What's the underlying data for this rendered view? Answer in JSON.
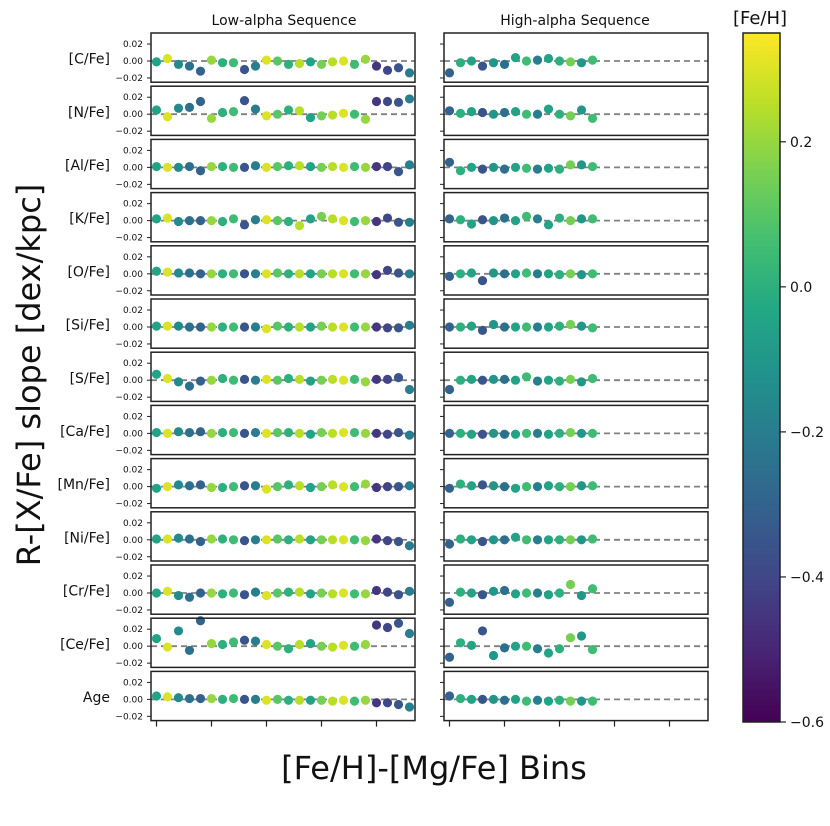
{
  "chart_data": {
    "type": "scatter",
    "supxlabel": "[Fe/H]-[Mg/Fe] Bins",
    "supylabel": "R-[X/Fe] slope [dex/kpc]",
    "column_titles": [
      "Low-alpha Sequence",
      "High-alpha Sequence"
    ],
    "row_labels": [
      "[C/Fe]",
      "[N/Fe]",
      "[Al/Fe]",
      "[K/Fe]",
      "[O/Fe]",
      "[Si/Fe]",
      "[S/Fe]",
      "[Ca/Fe]",
      "[Mn/Fe]",
      "[Ni/Fe]",
      "[Cr/Fe]",
      "[Ce/Fe]",
      "Age"
    ],
    "ylim": [
      -0.025,
      0.033
    ],
    "yticks": [
      -0.02,
      0.0,
      0.02
    ],
    "ytick_labels": [
      "−0.02",
      "0.00",
      "0.02"
    ],
    "x_range": [
      -0.5,
      23.5
    ],
    "xticks": [
      0,
      5,
      10,
      15,
      20
    ],
    "reference_line": 0.0,
    "colorbar": {
      "label": "[Fe/H]",
      "vmin": -0.6,
      "vmax": 0.35,
      "ticks": [
        0.2,
        0.0,
        -0.2,
        -0.4,
        -0.6
      ],
      "tick_labels": [
        "0.2",
        "0.0",
        "−0.2",
        "−0.4",
        "−0.6"
      ],
      "colormap": "viridis"
    },
    "low_alpha_feh": [
      -0.05,
      0.3,
      -0.15,
      -0.25,
      -0.3,
      0.2,
      0.0,
      0.05,
      -0.35,
      -0.2,
      0.3,
      0.1,
      0.0,
      0.25,
      -0.05,
      0.15,
      0.25,
      0.3,
      0.05,
      0.2,
      -0.45,
      -0.4,
      -0.35,
      -0.2
    ],
    "high_alpha_feh": [
      -0.3,
      0.0,
      -0.05,
      -0.35,
      -0.1,
      -0.25,
      -0.05,
      0.05,
      -0.2,
      -0.05,
      0.0,
      0.15,
      -0.1,
      0.05
    ],
    "series": [
      {
        "name": "[C/Fe]",
        "low_alpha": [
          -0.001,
          0.003,
          -0.004,
          -0.006,
          -0.012,
          0.001,
          -0.002,
          -0.002,
          -0.01,
          -0.006,
          0.001,
          0.0,
          -0.004,
          -0.003,
          -0.001,
          -0.004,
          -0.001,
          0.0,
          -0.004,
          0.002,
          -0.006,
          -0.011,
          -0.008,
          -0.014
        ],
        "high_alpha": [
          -0.014,
          -0.002,
          0.0,
          -0.006,
          -0.002,
          -0.004,
          0.004,
          0.0,
          0.001,
          0.003,
          0.0,
          -0.001,
          -0.002,
          0.001
        ]
      },
      {
        "name": "[N/Fe]",
        "low_alpha": [
          0.005,
          -0.003,
          0.007,
          0.008,
          0.015,
          -0.005,
          0.002,
          0.003,
          0.016,
          0.006,
          -0.002,
          0.0,
          0.005,
          0.004,
          -0.004,
          -0.002,
          -0.001,
          0.001,
          0.0,
          -0.006,
          0.015,
          0.015,
          0.014,
          0.018
        ],
        "high_alpha": [
          0.004,
          0.001,
          0.003,
          0.002,
          0.0,
          0.002,
          0.003,
          0.0,
          0.0,
          0.006,
          0.0,
          -0.002,
          0.005,
          -0.005
        ]
      },
      {
        "name": "[Al/Fe]",
        "low_alpha": [
          0.001,
          0.0,
          0.0,
          0.001,
          -0.004,
          0.001,
          0.001,
          0.0,
          0.0,
          0.002,
          0.0,
          0.001,
          0.002,
          0.002,
          0.001,
          0.0,
          0.001,
          0.0,
          0.001,
          0.0,
          0.001,
          0.001,
          -0.005,
          0.003
        ],
        "high_alpha": [
          0.006,
          -0.004,
          0.0,
          -0.002,
          0.0,
          -0.002,
          0.0,
          -0.001,
          -0.002,
          -0.001,
          -0.002,
          0.003,
          0.003,
          0.001
        ]
      },
      {
        "name": "[K/Fe]",
        "low_alpha": [
          0.002,
          0.003,
          -0.001,
          0.0,
          0.0,
          0.0,
          -0.001,
          0.002,
          -0.005,
          0.001,
          0.001,
          0.0,
          -0.001,
          -0.006,
          0.002,
          0.005,
          0.002,
          0.0,
          -0.001,
          0.0,
          -0.001,
          0.003,
          -0.002,
          -0.002
        ],
        "high_alpha": [
          0.002,
          0.001,
          -0.004,
          0.001,
          0.0,
          0.003,
          0.0,
          0.005,
          0.002,
          -0.005,
          0.003,
          0.0,
          0.002,
          0.002
        ]
      },
      {
        "name": "[O/Fe]",
        "low_alpha": [
          0.003,
          0.002,
          0.001,
          0.001,
          0.0,
          0.0,
          0.0,
          0.0,
          0.0,
          0.0,
          0.0,
          0.001,
          0.0,
          0.0,
          0.0,
          0.0,
          0.0,
          0.0,
          0.0,
          0.0,
          -0.001,
          0.004,
          0.001,
          0.0
        ],
        "high_alpha": [
          -0.003,
          0.0,
          0.001,
          -0.008,
          0.001,
          0.0,
          0.0,
          0.001,
          0.0,
          0.0,
          -0.001,
          0.0,
          -0.001,
          0.0
        ]
      },
      {
        "name": "[Si/Fe]",
        "low_alpha": [
          0.001,
          0.001,
          0.001,
          0.0,
          0.0,
          0.0,
          0.0,
          0.0,
          0.0,
          0.0,
          -0.002,
          0.001,
          0.0,
          0.0,
          0.0,
          0.001,
          0.0,
          0.0,
          0.0,
          0.0,
          0.0,
          -0.001,
          -0.001,
          0.002
        ],
        "high_alpha": [
          0.0,
          0.0,
          0.001,
          -0.004,
          0.003,
          0.0,
          0.0,
          0.0,
          0.0,
          0.0,
          0.001,
          0.003,
          0.001,
          -0.001
        ]
      },
      {
        "name": "[S/Fe]",
        "low_alpha": [
          0.007,
          0.002,
          -0.002,
          -0.007,
          -0.001,
          0.0,
          0.002,
          0.0,
          0.001,
          0.0,
          0.001,
          0.0,
          0.002,
          0.001,
          -0.001,
          0.0,
          0.001,
          0.0,
          0.001,
          -0.002,
          0.001,
          0.001,
          0.003,
          -0.011
        ],
        "high_alpha": [
          -0.011,
          0.0,
          0.001,
          0.0,
          0.001,
          0.001,
          0.0,
          0.004,
          -0.001,
          0.0,
          -0.001,
          0.001,
          -0.002,
          0.002
        ]
      },
      {
        "name": "[Ca/Fe]",
        "low_alpha": [
          0.001,
          0.0,
          0.002,
          0.001,
          0.002,
          0.0,
          0.001,
          0.001,
          0.0,
          0.001,
          0.0,
          0.001,
          0.001,
          0.0,
          -0.001,
          0.001,
          0.0,
          0.001,
          0.001,
          0.0,
          0.0,
          -0.001,
          0.001,
          -0.002
        ],
        "high_alpha": [
          0.0,
          0.0,
          -0.001,
          -0.001,
          0.0,
          -0.001,
          -0.001,
          0.0,
          0.0,
          -0.001,
          0.0,
          0.001,
          0.0,
          0.0
        ]
      },
      {
        "name": "[Mn/Fe]",
        "low_alpha": [
          -0.002,
          0.0,
          0.002,
          0.001,
          0.002,
          -0.001,
          -0.001,
          0.0,
          0.001,
          0.001,
          -0.003,
          0.0,
          0.002,
          0.001,
          -0.001,
          0.0,
          0.002,
          0.0,
          0.0,
          0.003,
          -0.001,
          0.0,
          0.0,
          0.001
        ],
        "high_alpha": [
          -0.002,
          0.003,
          0.001,
          0.002,
          0.001,
          0.0,
          -0.002,
          0.0,
          0.0,
          0.001,
          0.0,
          0.0,
          0.001,
          0.001
        ]
      },
      {
        "name": "[Ni/Fe]",
        "low_alpha": [
          0.001,
          0.001,
          0.002,
          0.001,
          -0.002,
          0.001,
          0.001,
          0.0,
          -0.001,
          0.0,
          0.0,
          0.001,
          0.0,
          0.001,
          0.0,
          0.0,
          0.0,
          0.0,
          0.0,
          -0.001,
          0.001,
          -0.001,
          -0.002,
          -0.007
        ],
        "high_alpha": [
          -0.005,
          0.001,
          0.0,
          -0.002,
          0.0,
          0.0,
          0.003,
          0.0,
          0.0,
          0.0,
          0.0,
          0.0,
          0.0,
          0.001
        ]
      },
      {
        "name": "[Cr/Fe]",
        "low_alpha": [
          0.0,
          0.002,
          -0.003,
          -0.005,
          0.0,
          0.0,
          -0.001,
          0.0,
          -0.002,
          0.001,
          -0.003,
          0.0,
          0.001,
          0.001,
          -0.001,
          0.0,
          -0.001,
          0.0,
          -0.001,
          -0.001,
          0.003,
          0.001,
          -0.002,
          0.002
        ],
        "high_alpha": [
          -0.011,
          0.001,
          0.0,
          -0.002,
          0.002,
          0.003,
          -0.001,
          0.0,
          0.0,
          -0.002,
          0.0,
          0.01,
          -0.003,
          0.005
        ]
      },
      {
        "name": "[Ce/Fe]",
        "low_alpha": [
          0.009,
          -0.001,
          0.018,
          -0.005,
          0.03,
          0.003,
          0.002,
          0.005,
          0.007,
          0.006,
          0.002,
          0.0,
          -0.003,
          0.002,
          0.003,
          0.0,
          -0.001,
          0.001,
          0.0,
          0.002,
          0.025,
          0.022,
          0.027,
          0.015
        ],
        "high_alpha": [
          -0.013,
          0.004,
          0.001,
          0.018,
          -0.011,
          -0.002,
          0.0,
          0.0,
          -0.003,
          -0.008,
          -0.003,
          0.01,
          0.012,
          -0.004
        ]
      },
      {
        "name": "Age",
        "low_alpha": [
          0.004,
          0.003,
          0.002,
          0.001,
          0.001,
          0.001,
          0.0,
          0.001,
          0.0,
          0.0,
          -0.001,
          0.0,
          -0.001,
          -0.001,
          -0.001,
          -0.001,
          -0.002,
          -0.001,
          -0.002,
          -0.001,
          -0.004,
          -0.004,
          -0.006,
          -0.009
        ],
        "high_alpha": [
          0.004,
          0.001,
          0.0,
          0.0,
          0.0,
          -0.001,
          0.0,
          -0.002,
          -0.001,
          -0.002,
          -0.001,
          -0.002,
          -0.002,
          -0.002
        ]
      }
    ]
  }
}
